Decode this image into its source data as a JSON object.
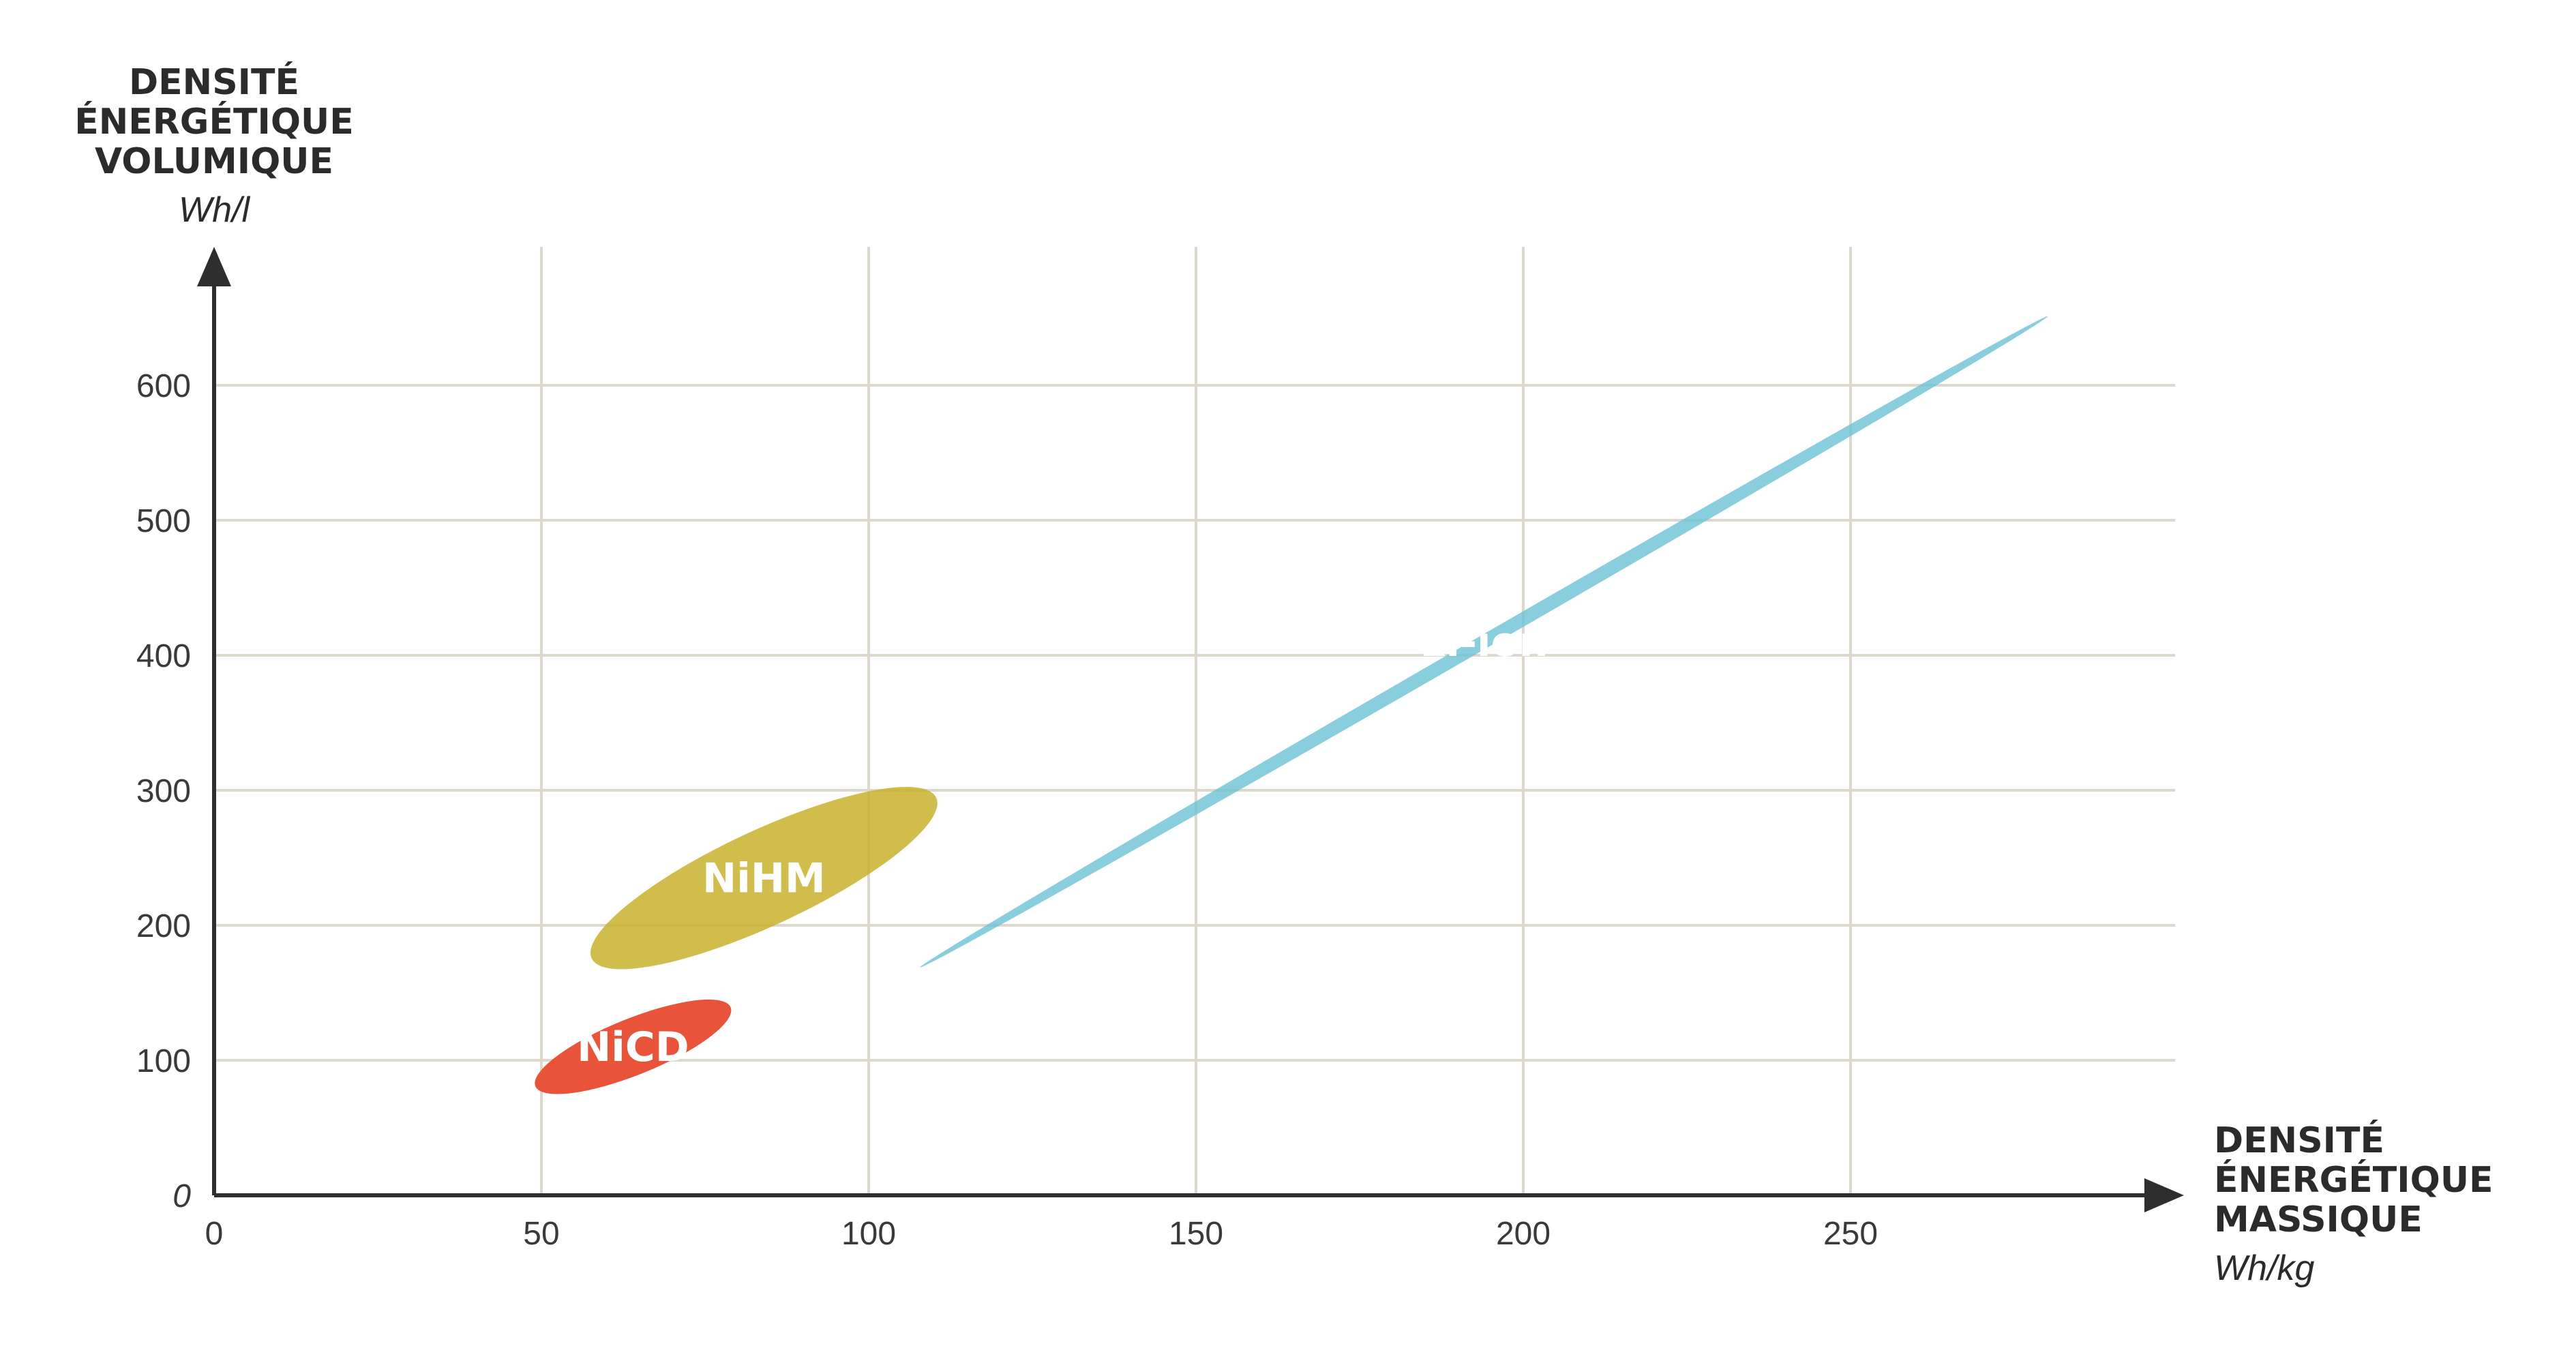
{
  "chart_data": {
    "type": "scatter",
    "title": "",
    "xlabel": [
      "DENSITÉ",
      "ÉNERGÉTIQUE",
      "MASSIQUE"
    ],
    "xunit": "Wh/kg",
    "ylabel": [
      "DENSITÉ",
      "ÉNERGÉTIQUE",
      "VOLUMIQUE"
    ],
    "yunit": "Wh/l",
    "x_ticks": [
      "0",
      "50",
      "100",
      "150",
      "200",
      "250"
    ],
    "y_ticks": [
      "0",
      "100",
      "200",
      "300",
      "400",
      "500",
      "600"
    ],
    "xlim": [
      0,
      300
    ],
    "ylim": [
      0,
      700
    ],
    "grid": true,
    "regions": [
      {
        "name": "NiCD",
        "color": "#e8533a",
        "opacity": 1.0,
        "center": [
          64,
          110
        ],
        "span_x": [
          49,
          79
        ],
        "span_y": [
          75,
          145
        ],
        "tilt_deg": -22
      },
      {
        "name": "NiHM",
        "color": "#c8b12b",
        "opacity": 0.85,
        "center": [
          84,
          235
        ],
        "span_x": [
          62,
          115
        ],
        "span_y": [
          165,
          300
        ],
        "tilt_deg": -25
      },
      {
        "name": "Li-ion",
        "color": "#6ec3d6",
        "opacity": 0.82,
        "center": [
          194,
          410
        ],
        "span_x": [
          103,
          275
        ],
        "span_y": [
          200,
          675
        ],
        "tilt_deg": -30
      }
    ]
  }
}
